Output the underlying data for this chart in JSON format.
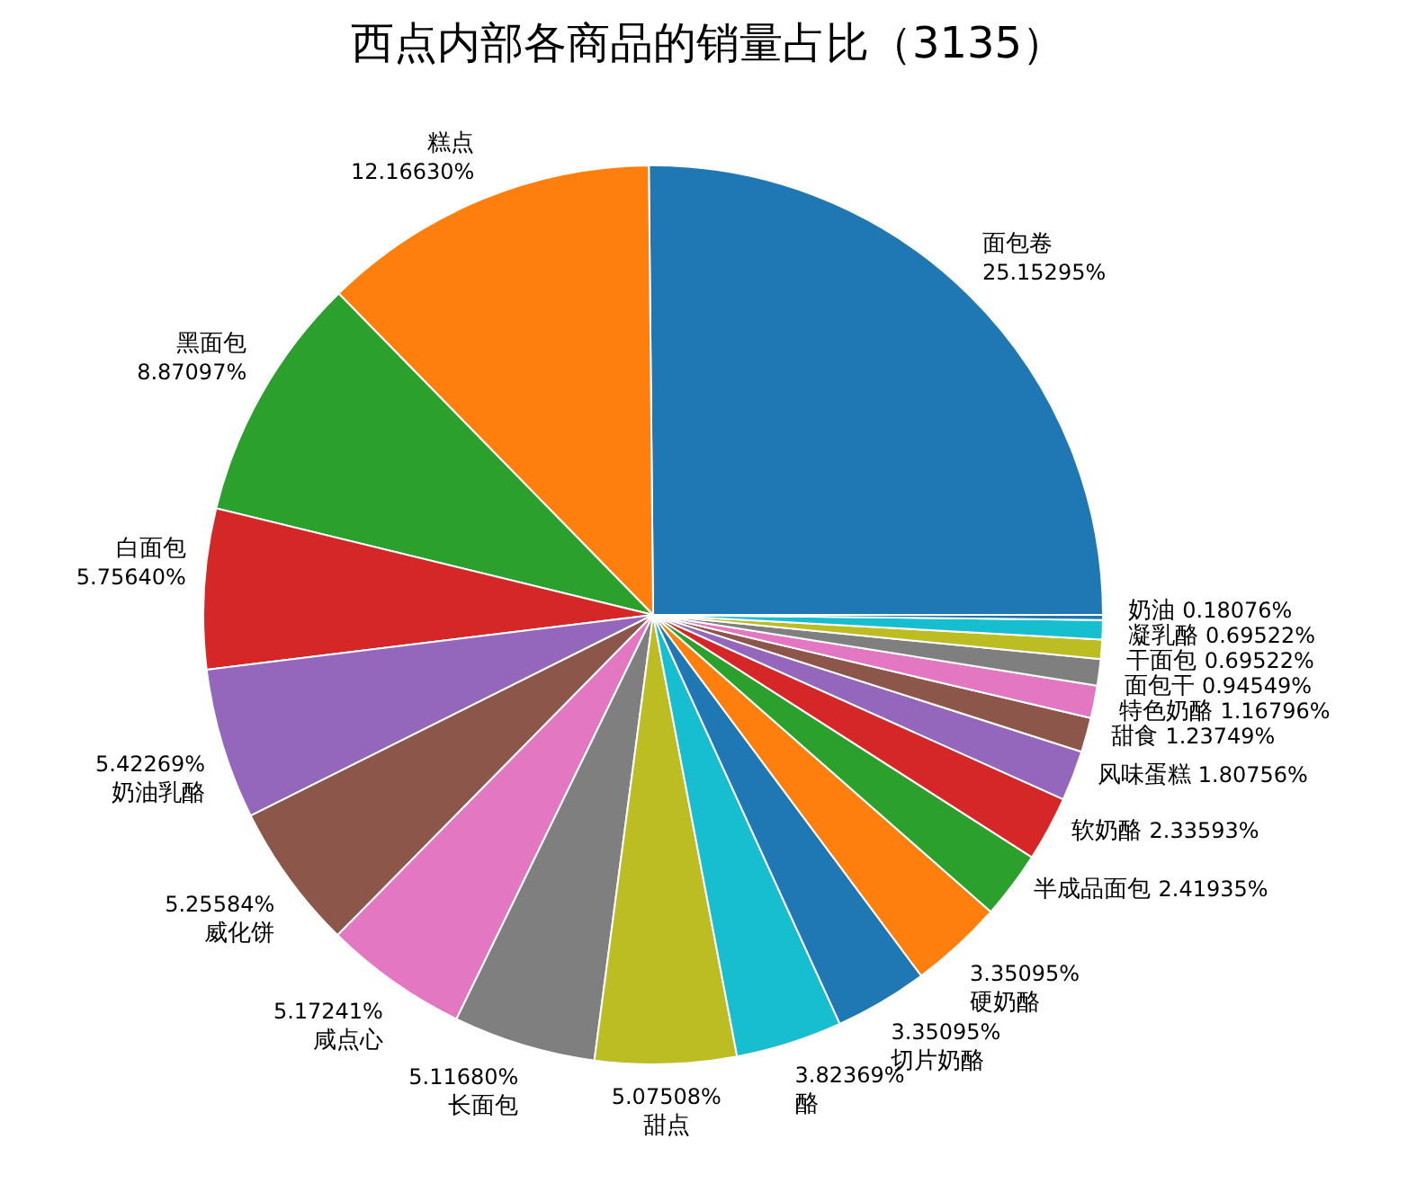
{
  "chart_data": {
    "type": "pie",
    "title": "西点内部各商品的销量占比（3135）",
    "categories": [
      "面包卷",
      "糕点",
      "黑面包",
      "白面包",
      "奶油乳酪",
      "威化饼",
      "咸点心",
      "长面包",
      "甜点",
      "酪",
      "切片奶酪",
      "硬奶酪",
      "半成品面包",
      "软奶酪",
      "风味蛋糕",
      "甜食",
      "特色奶酪",
      "面包干",
      "干面包",
      "凝乳酪",
      "奶油"
    ],
    "values": [
      25.15295,
      12.1663,
      8.87097,
      5.7564,
      5.42269,
      5.25584,
      5.17241,
      5.1168,
      5.07508,
      3.82369,
      3.35095,
      3.35095,
      2.41935,
      2.33593,
      1.80756,
      1.23749,
      1.16796,
      0.94549,
      0.69522,
      0.69522,
      0.18076
    ],
    "value_labels": [
      "25.15295%",
      "12.16630%",
      "8.87097%",
      "5.75640%",
      "5.42269%",
      "5.25584%",
      "5.17241%",
      "5.11680%",
      "5.07508%",
      "3.82369%",
      "3.35095%",
      "3.35095%",
      "2.41935%",
      "2.33593%",
      "1.80756%",
      "1.23749%",
      "1.16796%",
      "0.94549%",
      "0.69522%",
      "0.69522%",
      "0.18076%"
    ],
    "colors": [
      "#1f77b4",
      "#ff7f0e",
      "#2ca02c",
      "#d62728",
      "#9467bd",
      "#8c564b",
      "#e377c2",
      "#7f7f7f",
      "#bcbd22",
      "#17becf",
      "#1f77b4",
      "#ff7f0e",
      "#2ca02c",
      "#d62728",
      "#9467bd",
      "#8c564b",
      "#e377c2",
      "#7f7f7f",
      "#bcbd22",
      "#17becf",
      "#1f77b4"
    ],
    "legend": false
  }
}
